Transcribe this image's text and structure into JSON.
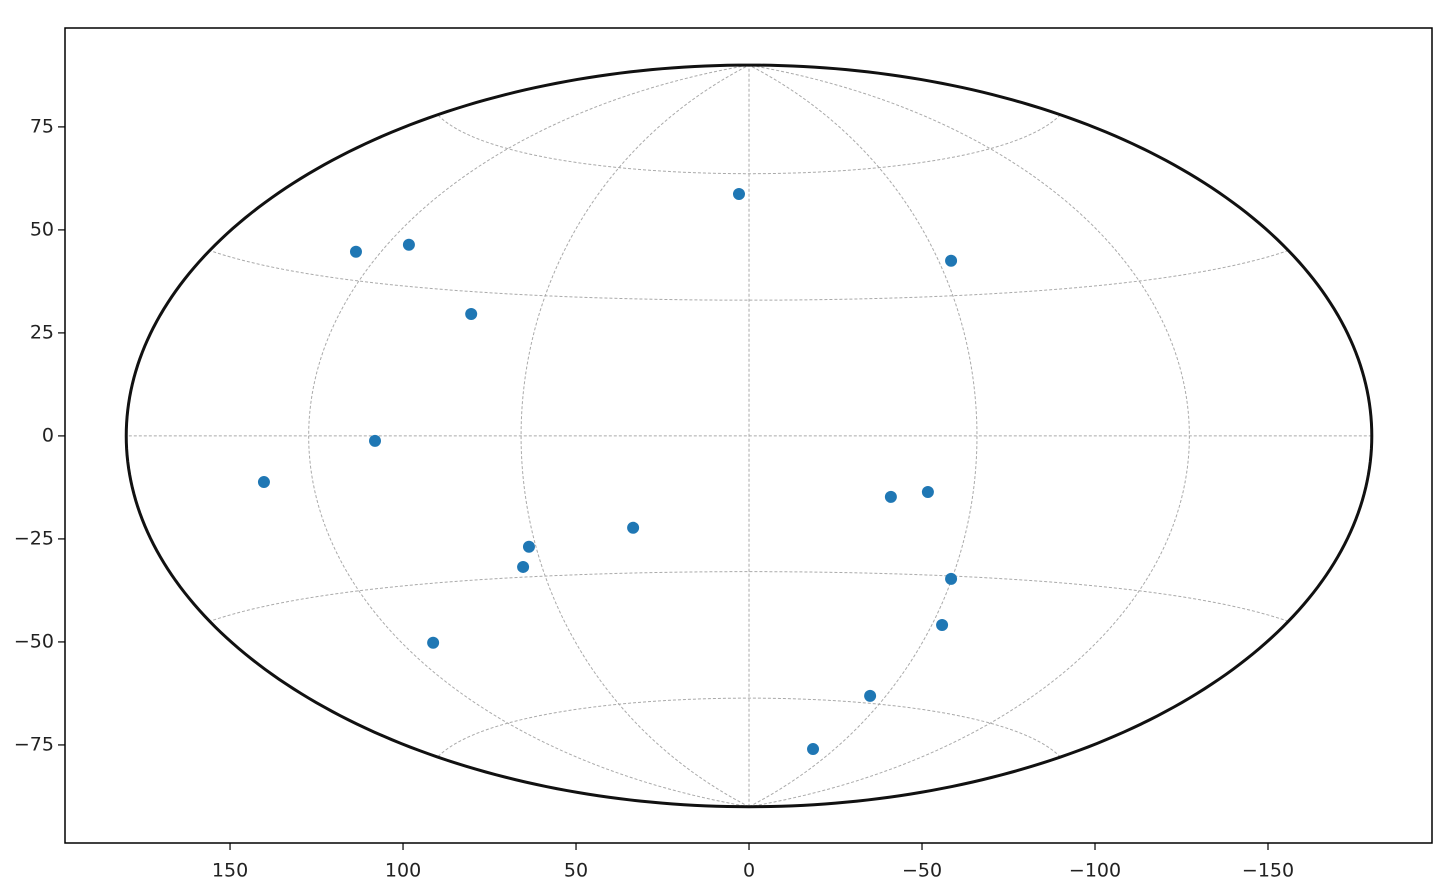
{
  "chart_data": {
    "type": "scatter",
    "projection": "hammer",
    "grid": true,
    "color": "#1f77b4",
    "x": [
      2.9,
      113.6,
      98.3,
      -58.4,
      80.3,
      108.1,
      140.2,
      33.5,
      63.6,
      65.3,
      91.3,
      -41.0,
      -51.7,
      -58.4,
      -55.8,
      -35.0,
      -18.5
    ],
    "values": [
      58.7,
      44.7,
      46.4,
      42.5,
      29.6,
      -1.2,
      -11.2,
      -22.3,
      -26.9,
      -31.8,
      -50.2,
      -14.8,
      -13.6,
      -34.7,
      -45.9,
      -63.1,
      -76.0
    ],
    "xlim": [
      197.7,
      -197.4
    ],
    "ylim": [
      -98.8,
      99
    ],
    "xticks": [
      150,
      100,
      50,
      0,
      {
        "value": -50,
        "label": "−50"
      },
      {
        "value": -100,
        "label": "−100"
      },
      {
        "value": -150,
        "label": "−150"
      }
    ],
    "yticks": [
      {
        "value": -75,
        "label": "−75"
      },
      {
        "value": -50,
        "label": "−50"
      },
      {
        "value": -25,
        "label": "−25"
      },
      0,
      25,
      50,
      75
    ]
  }
}
